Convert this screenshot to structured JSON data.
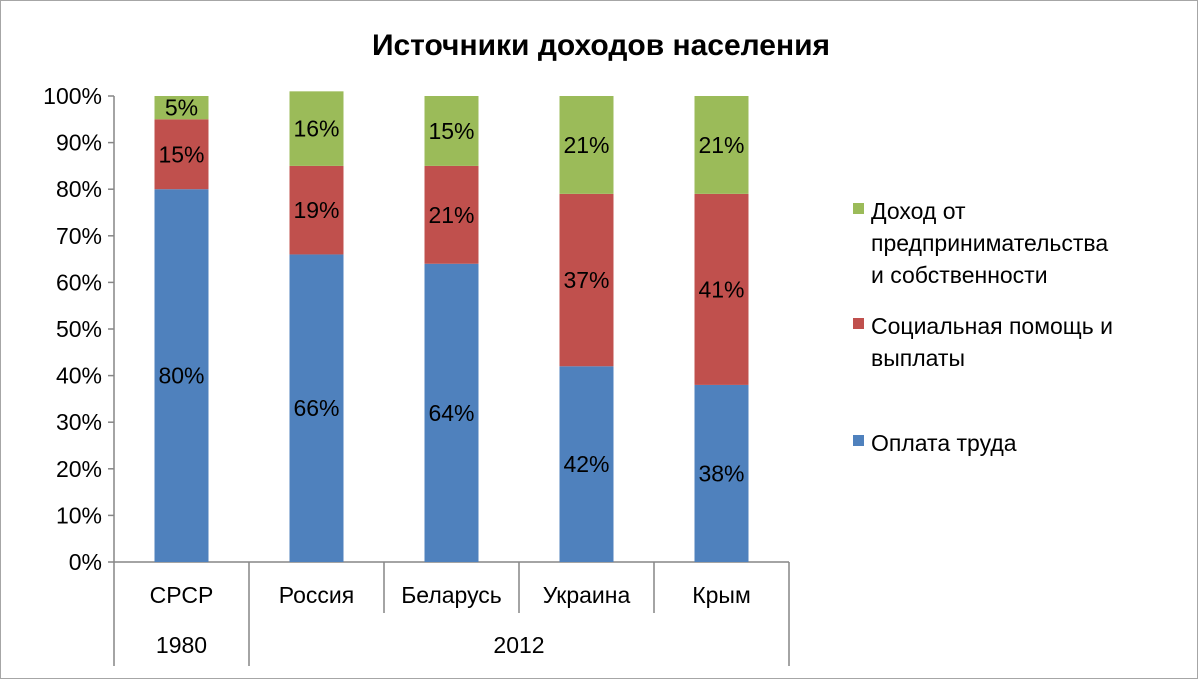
{
  "chart_data": {
    "type": "bar",
    "stacked": true,
    "title": "Источники доходов населения",
    "categories": [
      "СРСР",
      "Россия",
      "Беларусь",
      "Украина",
      "Крым"
    ],
    "category_groups": [
      {
        "label": "1980",
        "categories": [
          "СРСР"
        ]
      },
      {
        "label": "2012",
        "categories": [
          "Россия",
          "Беларусь",
          "Украина",
          "Крым"
        ]
      }
    ],
    "y_ticks": [
      "0%",
      "10%",
      "20%",
      "30%",
      "40%",
      "50%",
      "60%",
      "70%",
      "80%",
      "90%",
      "100%"
    ],
    "ylim": [
      0,
      100
    ],
    "grid": false,
    "legend_position": "right",
    "series": [
      {
        "name": "Оплата труда",
        "color": "#4f81bd",
        "values": [
          80,
          66,
          64,
          42,
          38
        ],
        "labels": [
          "80%",
          "66%",
          "64%",
          "42%",
          "38%"
        ]
      },
      {
        "name": "Социальная помощь и выплаты",
        "color": "#c0504d",
        "values": [
          15,
          19,
          21,
          37,
          41
        ],
        "labels": [
          "15%",
          "19%",
          "21%",
          "37%",
          "41%"
        ]
      },
      {
        "name": "Доход от предпринимательства и собственности",
        "color": "#9bbb59",
        "values": [
          5,
          16,
          15,
          21,
          21
        ],
        "labels": [
          "5%",
          "16%",
          "15%",
          "21%",
          "21%"
        ]
      }
    ],
    "legend": [
      {
        "series": 2,
        "lines": [
          "Доход от",
          "предпринимательства",
          "и собственности"
        ]
      },
      {
        "series": 1,
        "lines": [
          "Социальная помощь и",
          "выплаты"
        ]
      },
      {
        "series": 0,
        "lines": [
          "Оплата труда"
        ]
      }
    ]
  }
}
